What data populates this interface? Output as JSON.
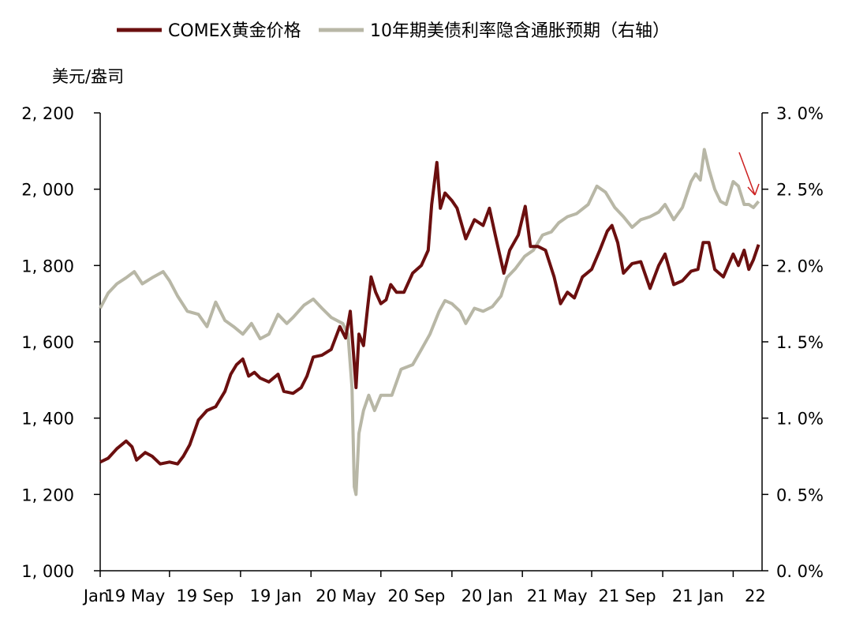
{
  "chart_data": {
    "type": "line",
    "ylabel_left": "美元/盎司",
    "left_axis": {
      "min": 1000,
      "max": 2200,
      "step": 200,
      "tick_labels": [
        "1, 000",
        "1, 200",
        "1, 400",
        "1, 600",
        "1, 800",
        "2, 000",
        "2, 200"
      ]
    },
    "right_axis": {
      "min": 0,
      "max": 3.0,
      "step": 0.5,
      "tick_labels": [
        "0. 0%",
        "0. 5%",
        "1. 0%",
        "1. 5%",
        "2. 0%",
        "2. 5%",
        "3. 0%"
      ]
    },
    "x_ticks": [
      "Jan 19",
      "May 19",
      "Sep 19",
      "Jan 20",
      "May 20",
      "Sep 20",
      "Jan 21",
      "May 21",
      "Sep 21",
      "Jan 22"
    ],
    "x_tick_labels_rendered": [
      "Jan",
      "19 May",
      "19 Sep",
      "19 Jan",
      "20 May",
      "20 Sep",
      "20 Jan",
      "21 May",
      "21 Sep",
      "21 Jan",
      "22"
    ],
    "legend_position": "top",
    "annotation": "red-arrow-pointing-down-at-right-axis",
    "series": [
      {
        "name": "COMEX黄金价格",
        "axis": "left",
        "color": "#6b0f0f",
        "points": [
          [
            "2019-01-01",
            1285
          ],
          [
            "2019-01-15",
            1295
          ],
          [
            "2019-01-30",
            1320
          ],
          [
            "2019-02-15",
            1340
          ],
          [
            "2019-02-25",
            1325
          ],
          [
            "2019-03-05",
            1290
          ],
          [
            "2019-03-20",
            1310
          ],
          [
            "2019-04-01",
            1300
          ],
          [
            "2019-04-15",
            1280
          ],
          [
            "2019-05-01",
            1285
          ],
          [
            "2019-05-15",
            1280
          ],
          [
            "2019-05-25",
            1300
          ],
          [
            "2019-06-05",
            1330
          ],
          [
            "2019-06-20",
            1395
          ],
          [
            "2019-07-05",
            1420
          ],
          [
            "2019-07-20",
            1430
          ],
          [
            "2019-08-05",
            1470
          ],
          [
            "2019-08-15",
            1515
          ],
          [
            "2019-08-25",
            1540
          ],
          [
            "2019-09-05",
            1555
          ],
          [
            "2019-09-15",
            1510
          ],
          [
            "2019-09-25",
            1520
          ],
          [
            "2019-10-05",
            1505
          ],
          [
            "2019-10-20",
            1495
          ],
          [
            "2019-11-05",
            1515
          ],
          [
            "2019-11-15",
            1470
          ],
          [
            "2019-12-01",
            1465
          ],
          [
            "2019-12-15",
            1480
          ],
          [
            "2019-12-25",
            1510
          ],
          [
            "2020-01-05",
            1560
          ],
          [
            "2020-01-20",
            1565
          ],
          [
            "2020-02-05",
            1580
          ],
          [
            "2020-02-20",
            1640
          ],
          [
            "2020-03-01",
            1610
          ],
          [
            "2020-03-09",
            1680
          ],
          [
            "2020-03-14",
            1580
          ],
          [
            "2020-03-19",
            1480
          ],
          [
            "2020-03-24",
            1620
          ],
          [
            "2020-04-01",
            1590
          ],
          [
            "2020-04-08",
            1690
          ],
          [
            "2020-04-14",
            1770
          ],
          [
            "2020-04-22",
            1730
          ],
          [
            "2020-05-01",
            1700
          ],
          [
            "2020-05-10",
            1710
          ],
          [
            "2020-05-18",
            1750
          ],
          [
            "2020-05-28",
            1730
          ],
          [
            "2020-06-10",
            1730
          ],
          [
            "2020-06-25",
            1780
          ],
          [
            "2020-07-10",
            1800
          ],
          [
            "2020-07-22",
            1840
          ],
          [
            "2020-07-28",
            1960
          ],
          [
            "2020-08-06",
            2070
          ],
          [
            "2020-08-12",
            1950
          ],
          [
            "2020-08-20",
            1990
          ],
          [
            "2020-09-01",
            1970
          ],
          [
            "2020-09-10",
            1950
          ],
          [
            "2020-09-25",
            1870
          ],
          [
            "2020-10-10",
            1920
          ],
          [
            "2020-10-25",
            1905
          ],
          [
            "2020-11-05",
            1950
          ],
          [
            "2020-11-15",
            1880
          ],
          [
            "2020-11-30",
            1780
          ],
          [
            "2020-12-10",
            1840
          ],
          [
            "2020-12-25",
            1880
          ],
          [
            "2021-01-06",
            1955
          ],
          [
            "2021-01-15",
            1850
          ],
          [
            "2021-01-28",
            1850
          ],
          [
            "2021-02-10",
            1840
          ],
          [
            "2021-02-25",
            1770
          ],
          [
            "2021-03-08",
            1700
          ],
          [
            "2021-03-20",
            1730
          ],
          [
            "2021-04-01",
            1715
          ],
          [
            "2021-04-15",
            1770
          ],
          [
            "2021-05-01",
            1790
          ],
          [
            "2021-05-15",
            1840
          ],
          [
            "2021-05-28",
            1890
          ],
          [
            "2021-06-05",
            1905
          ],
          [
            "2021-06-15",
            1860
          ],
          [
            "2021-06-25",
            1780
          ],
          [
            "2021-07-10",
            1805
          ],
          [
            "2021-07-25",
            1810
          ],
          [
            "2021-08-10",
            1740
          ],
          [
            "2021-08-25",
            1800
          ],
          [
            "2021-09-05",
            1830
          ],
          [
            "2021-09-20",
            1750
          ],
          [
            "2021-10-05",
            1760
          ],
          [
            "2021-10-20",
            1785
          ],
          [
            "2021-11-01",
            1790
          ],
          [
            "2021-11-10",
            1860
          ],
          [
            "2021-11-20",
            1860
          ],
          [
            "2021-11-30",
            1790
          ],
          [
            "2021-12-15",
            1770
          ],
          [
            "2022-01-01",
            1830
          ],
          [
            "2022-01-10",
            1800
          ],
          [
            "2022-01-20",
            1840
          ],
          [
            "2022-01-28",
            1790
          ],
          [
            "2022-02-05",
            1815
          ],
          [
            "2022-02-14",
            1855
          ]
        ]
      },
      {
        "name": "10年期美债利率隐含通胀预期（右轴）",
        "axis": "right",
        "color": "#b8b7a6",
        "points": [
          [
            "2019-01-01",
            1.72
          ],
          [
            "2019-01-15",
            1.82
          ],
          [
            "2019-01-30",
            1.88
          ],
          [
            "2019-02-15",
            1.92
          ],
          [
            "2019-03-01",
            1.96
          ],
          [
            "2019-03-15",
            1.88
          ],
          [
            "2019-04-01",
            1.92
          ],
          [
            "2019-04-20",
            1.96
          ],
          [
            "2019-05-01",
            1.9
          ],
          [
            "2019-05-15",
            1.8
          ],
          [
            "2019-06-01",
            1.7
          ],
          [
            "2019-06-20",
            1.68
          ],
          [
            "2019-07-05",
            1.6
          ],
          [
            "2019-07-20",
            1.76
          ],
          [
            "2019-08-05",
            1.64
          ],
          [
            "2019-08-20",
            1.6
          ],
          [
            "2019-09-05",
            1.55
          ],
          [
            "2019-09-20",
            1.62
          ],
          [
            "2019-10-05",
            1.52
          ],
          [
            "2019-10-20",
            1.55
          ],
          [
            "2019-11-05",
            1.68
          ],
          [
            "2019-11-20",
            1.62
          ],
          [
            "2019-12-01",
            1.66
          ],
          [
            "2019-12-20",
            1.74
          ],
          [
            "2020-01-05",
            1.78
          ],
          [
            "2020-01-20",
            1.72
          ],
          [
            "2020-02-05",
            1.66
          ],
          [
            "2020-02-25",
            1.62
          ],
          [
            "2020-03-05",
            1.55
          ],
          [
            "2020-03-12",
            1.2
          ],
          [
            "2020-03-16",
            0.55
          ],
          [
            "2020-03-19",
            0.5
          ],
          [
            "2020-03-24",
            0.9
          ],
          [
            "2020-04-01",
            1.05
          ],
          [
            "2020-04-10",
            1.15
          ],
          [
            "2020-04-20",
            1.05
          ],
          [
            "2020-05-01",
            1.15
          ],
          [
            "2020-05-20",
            1.15
          ],
          [
            "2020-06-05",
            1.32
          ],
          [
            "2020-06-25",
            1.35
          ],
          [
            "2020-07-10",
            1.45
          ],
          [
            "2020-07-25",
            1.55
          ],
          [
            "2020-08-10",
            1.7
          ],
          [
            "2020-08-20",
            1.77
          ],
          [
            "2020-09-01",
            1.75
          ],
          [
            "2020-09-15",
            1.7
          ],
          [
            "2020-09-25",
            1.62
          ],
          [
            "2020-10-10",
            1.72
          ],
          [
            "2020-10-25",
            1.7
          ],
          [
            "2020-11-10",
            1.73
          ],
          [
            "2020-11-25",
            1.8
          ],
          [
            "2020-12-05",
            1.92
          ],
          [
            "2020-12-20",
            1.98
          ],
          [
            "2021-01-05",
            2.06
          ],
          [
            "2021-01-20",
            2.1
          ],
          [
            "2021-02-05",
            2.2
          ],
          [
            "2021-02-20",
            2.22
          ],
          [
            "2021-03-05",
            2.28
          ],
          [
            "2021-03-20",
            2.32
          ],
          [
            "2021-04-05",
            2.34
          ],
          [
            "2021-04-25",
            2.4
          ],
          [
            "2021-05-10",
            2.52
          ],
          [
            "2021-05-25",
            2.48
          ],
          [
            "2021-06-10",
            2.38
          ],
          [
            "2021-06-25",
            2.32
          ],
          [
            "2021-07-10",
            2.25
          ],
          [
            "2021-07-25",
            2.3
          ],
          [
            "2021-08-10",
            2.32
          ],
          [
            "2021-08-25",
            2.35
          ],
          [
            "2021-09-05",
            2.4
          ],
          [
            "2021-09-20",
            2.3
          ],
          [
            "2021-10-05",
            2.38
          ],
          [
            "2021-10-20",
            2.55
          ],
          [
            "2021-10-28",
            2.6
          ],
          [
            "2021-11-05",
            2.56
          ],
          [
            "2021-11-12",
            2.76
          ],
          [
            "2021-11-20",
            2.63
          ],
          [
            "2021-11-30",
            2.5
          ],
          [
            "2021-12-10",
            2.42
          ],
          [
            "2021-12-20",
            2.4
          ],
          [
            "2022-01-01",
            2.55
          ],
          [
            "2022-01-10",
            2.52
          ],
          [
            "2022-01-20",
            2.4
          ],
          [
            "2022-01-28",
            2.4
          ],
          [
            "2022-02-05",
            2.38
          ],
          [
            "2022-02-14",
            2.42
          ]
        ]
      }
    ]
  }
}
